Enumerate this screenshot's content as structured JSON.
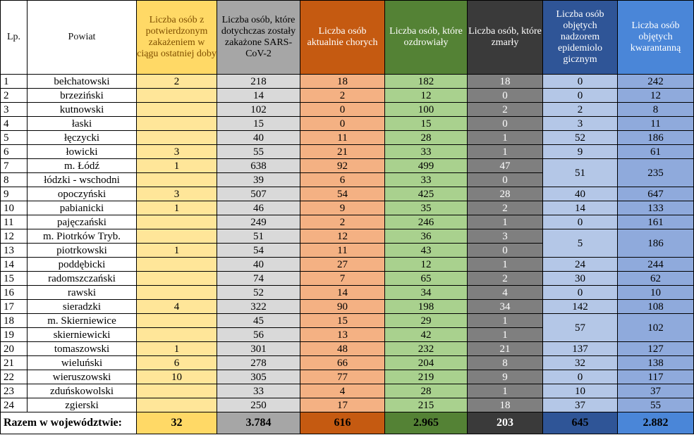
{
  "headers": {
    "lp": "Lp.",
    "powiat": "Powiat",
    "c1": "Liczba osób z potwierdzonym zakażeniem w ciągu ostatniej doby",
    "c2": "Liczba osób, które dotychczas zostały zakażone SARS-CoV-2",
    "c3": "Liczba osób aktualnie chorych",
    "c4": "Liczba osób, które ozdrowiały",
    "c5": "Liczba osób, które zmarły",
    "c6": "Liczba osób objętych nadzorem epidemiolo gicznym",
    "c7": "Liczba osób objętych kwarantanną"
  },
  "rows": [
    {
      "lp": "1",
      "powiat": "bełchatowski",
      "c1": "2",
      "c2": "218",
      "c3": "18",
      "c4": "182",
      "c5": "18",
      "c6": "0",
      "c7": "242"
    },
    {
      "lp": "2",
      "powiat": "brzeziński",
      "c1": "",
      "c2": "14",
      "c3": "2",
      "c4": "12",
      "c5": "0",
      "c6": "0",
      "c7": "12"
    },
    {
      "lp": "3",
      "powiat": "kutnowski",
      "c1": "",
      "c2": "102",
      "c3": "0",
      "c4": "100",
      "c5": "2",
      "c6": "2",
      "c7": "8"
    },
    {
      "lp": "4",
      "powiat": "łaski",
      "c1": "",
      "c2": "15",
      "c3": "0",
      "c4": "15",
      "c5": "0",
      "c6": "3",
      "c7": "11"
    },
    {
      "lp": "5",
      "powiat": "łęczycki",
      "c1": "",
      "c2": "40",
      "c3": "11",
      "c4": "28",
      "c5": "1",
      "c6": "52",
      "c7": "186"
    },
    {
      "lp": "6",
      "powiat": "łowicki",
      "c1": "3",
      "c2": "55",
      "c3": "21",
      "c4": "33",
      "c5": "1",
      "c6": "9",
      "c7": "61"
    },
    {
      "lp": "7",
      "powiat": "m. Łódź",
      "c1": "1",
      "c2": "638",
      "c3": "92",
      "c4": "499",
      "c5": "47",
      "c6": "51",
      "c7": "235"
    },
    {
      "lp": "8",
      "powiat": "łódzki - wschodni",
      "c1": "",
      "c2": "39",
      "c3": "6",
      "c4": "33",
      "c5": "0"
    },
    {
      "lp": "9",
      "powiat": "opoczyński",
      "c1": "3",
      "c2": "507",
      "c3": "54",
      "c4": "425",
      "c5": "28",
      "c6": "40",
      "c7": "647"
    },
    {
      "lp": "10",
      "powiat": "pabianicki",
      "c1": "1",
      "c2": "46",
      "c3": "9",
      "c4": "35",
      "c5": "2",
      "c6": "14",
      "c7": "133"
    },
    {
      "lp": "11",
      "powiat": "pajęczański",
      "c1": "",
      "c2": "249",
      "c3": "2",
      "c4": "246",
      "c5": "1",
      "c6": "0",
      "c7": "161"
    },
    {
      "lp": "12",
      "powiat": "m. Piotrków Tryb.",
      "c1": "",
      "c2": "51",
      "c3": "12",
      "c4": "36",
      "c5": "3",
      "c6": "5",
      "c7": "186"
    },
    {
      "lp": "13",
      "powiat": "piotrkowski",
      "c1": "1",
      "c2": "54",
      "c3": "11",
      "c4": "43",
      "c5": "0"
    },
    {
      "lp": "14",
      "powiat": "poddębicki",
      "c1": "",
      "c2": "40",
      "c3": "27",
      "c4": "12",
      "c5": "1",
      "c6": "24",
      "c7": "244"
    },
    {
      "lp": "15",
      "powiat": "radomszczański",
      "c1": "",
      "c2": "74",
      "c3": "7",
      "c4": "65",
      "c5": "2",
      "c6": "30",
      "c7": "62"
    },
    {
      "lp": "16",
      "powiat": "rawski",
      "c1": "",
      "c2": "52",
      "c3": "14",
      "c4": "34",
      "c5": "4",
      "c6": "0",
      "c7": "10"
    },
    {
      "lp": "17",
      "powiat": "sieradzki",
      "c1": "4",
      "c2": "322",
      "c3": "90",
      "c4": "198",
      "c5": "34",
      "c6": "142",
      "c7": "108"
    },
    {
      "lp": "18",
      "powiat": "m. Skierniewice",
      "c1": "",
      "c2": "45",
      "c3": "15",
      "c4": "29",
      "c5": "1",
      "c6": "57",
      "c7": "102"
    },
    {
      "lp": "19",
      "powiat": "skierniewicki",
      "c1": "",
      "c2": "56",
      "c3": "13",
      "c4": "42",
      "c5": "1"
    },
    {
      "lp": "20",
      "powiat": "tomaszowski",
      "c1": "1",
      "c2": "301",
      "c3": "48",
      "c4": "232",
      "c5": "21",
      "c6": "137",
      "c7": "127"
    },
    {
      "lp": "21",
      "powiat": "wieluński",
      "c1": "6",
      "c2": "278",
      "c3": "66",
      "c4": "204",
      "c5": "8",
      "c6": "32",
      "c7": "138"
    },
    {
      "lp": "22",
      "powiat": "wieruszowski",
      "c1": "10",
      "c2": "305",
      "c3": "77",
      "c4": "219",
      "c5": "9",
      "c6": "0",
      "c7": "117"
    },
    {
      "lp": "23",
      "powiat": "zduńskowolski",
      "c1": "",
      "c2": "33",
      "c3": "4",
      "c4": "28",
      "c5": "1",
      "c6": "10",
      "c7": "37"
    },
    {
      "lp": "24",
      "powiat": "zgierski",
      "c1": "",
      "c2": "250",
      "c3": "17",
      "c4": "215",
      "c5": "18",
      "c6": "37",
      "c7": "55"
    }
  ],
  "merged_rows": [
    "7",
    "12",
    "18"
  ],
  "footer": {
    "label": "Razem w województwie:",
    "c1": "32",
    "c2": "3.784",
    "c3": "616",
    "c4": "2.965",
    "c5": "203",
    "c6": "645",
    "c7": "2.882"
  }
}
